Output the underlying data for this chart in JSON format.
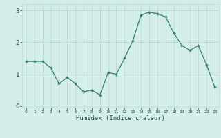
{
  "x": [
    0,
    1,
    2,
    3,
    4,
    5,
    6,
    7,
    8,
    9,
    10,
    11,
    12,
    13,
    14,
    15,
    16,
    17,
    18,
    19,
    20,
    21,
    22,
    23
  ],
  "y": [
    1.4,
    1.4,
    1.4,
    1.2,
    0.7,
    0.9,
    0.7,
    0.45,
    0.5,
    0.35,
    1.05,
    1.0,
    1.5,
    2.05,
    2.85,
    2.95,
    2.9,
    2.8,
    2.3,
    1.9,
    1.75,
    1.9,
    1.3,
    0.6
  ],
  "xlabel": "Humidex (Indice chaleur)",
  "ylim": [
    -0.05,
    3.2
  ],
  "xlim": [
    -0.5,
    23.5
  ],
  "yticks": [
    0,
    1,
    2,
    3
  ],
  "xticks": [
    0,
    1,
    2,
    3,
    4,
    5,
    6,
    7,
    8,
    9,
    10,
    11,
    12,
    13,
    14,
    15,
    16,
    17,
    18,
    19,
    20,
    21,
    22,
    23
  ],
  "line_color": "#2e7d6e",
  "marker": "+",
  "bg_color": "#d6eeea",
  "grid_color": "#b8ddd8",
  "axis_bg": "#d6eeea",
  "tick_color": "#1a4a44",
  "label_color": "#1a4a44"
}
